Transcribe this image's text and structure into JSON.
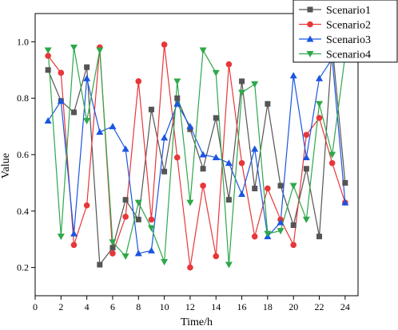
{
  "chart_data": {
    "type": "line",
    "xlabel": "Time/h",
    "ylabel": "Value",
    "xlim": [
      0,
      25
    ],
    "ylim": [
      0.1,
      1.1
    ],
    "xticks": [
      0,
      2,
      4,
      6,
      8,
      10,
      12,
      14,
      16,
      18,
      20,
      22,
      24
    ],
    "yticks": [
      0.2,
      0.4,
      0.6,
      0.8,
      1.0
    ],
    "xtick_labels": [
      "0",
      "2",
      "4",
      "6",
      "8",
      "10",
      "12",
      "14",
      "16",
      "18",
      "20",
      "22",
      "24"
    ],
    "ytick_labels": [
      "0.2",
      "0.4",
      "0.6",
      "0.8",
      "1.0"
    ],
    "legend_position": "top-right",
    "grid": false,
    "x": [
      1,
      2,
      3,
      4,
      5,
      6,
      7,
      8,
      9,
      10,
      11,
      12,
      13,
      14,
      15,
      16,
      17,
      18,
      19,
      20,
      21,
      22,
      23,
      24
    ],
    "series": [
      {
        "name": "Scenario1",
        "color": "#555555",
        "marker": "square",
        "values": [
          0.9,
          0.79,
          0.75,
          0.91,
          0.21,
          0.27,
          0.44,
          0.37,
          0.76,
          0.54,
          0.8,
          0.69,
          0.55,
          0.73,
          0.44,
          0.86,
          0.48,
          0.78,
          0.49,
          0.35,
          0.55,
          0.31,
          0.99,
          0.5
        ]
      },
      {
        "name": "Scenario2",
        "color": "#e8373a",
        "marker": "circle",
        "values": [
          0.95,
          0.89,
          0.28,
          0.42,
          0.98,
          0.25,
          0.38,
          0.86,
          0.37,
          0.99,
          0.59,
          0.2,
          0.49,
          0.24,
          0.92,
          0.57,
          0.31,
          0.48,
          0.37,
          0.28,
          0.67,
          0.73,
          0.57,
          0.43
        ]
      },
      {
        "name": "Scenario3",
        "color": "#1a56e0",
        "marker": "triangle-up",
        "values": [
          0.72,
          0.79,
          0.32,
          0.87,
          0.68,
          0.7,
          0.62,
          0.25,
          0.26,
          0.66,
          0.78,
          0.7,
          0.6,
          0.59,
          0.57,
          0.46,
          0.62,
          0.31,
          0.36,
          0.88,
          0.59,
          0.87,
          0.94,
          0.43
        ]
      },
      {
        "name": "Scenario4",
        "color": "#2ea84a",
        "marker": "triangle-down",
        "values": [
          0.97,
          0.31,
          0.98,
          0.72,
          0.97,
          0.29,
          0.24,
          0.43,
          0.34,
          0.22,
          0.86,
          0.43,
          0.97,
          0.89,
          0.21,
          0.82,
          0.85,
          0.32,
          0.33,
          0.49,
          0.37,
          0.78,
          0.6,
          0.95
        ]
      }
    ]
  }
}
